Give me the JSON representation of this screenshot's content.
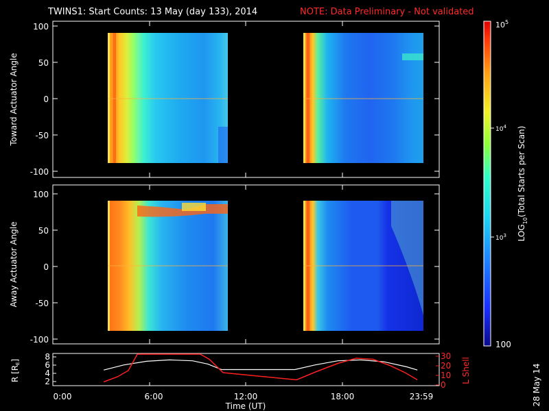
{
  "title_main": "TWINS1: Start Counts: 13 May (day 133), 2014",
  "title_note": "NOTE: Data Preliminary - Not validated",
  "chart_data": [
    {
      "type": "heatmap",
      "ylabel": "Toward Actuator Angle",
      "ylim": [
        -110,
        110
      ],
      "yticks": [
        100,
        50,
        0,
        -50,
        -100
      ],
      "xlim_hours": [
        0,
        24
      ],
      "data_blocks_hours": [
        [
          2.8,
          10.4
        ],
        [
          14.5,
          22.0
        ]
      ],
      "data_angle_range": [
        -88,
        89
      ]
    },
    {
      "type": "heatmap",
      "ylabel": "Away Actuator Angle",
      "ylim": [
        -110,
        110
      ],
      "yticks": [
        100,
        50,
        0,
        -50,
        -100
      ],
      "xlim_hours": [
        0,
        24
      ],
      "data_blocks_hours": [
        [
          2.8,
          10.4
        ],
        [
          14.5,
          22.0
        ]
      ],
      "data_angle_range": [
        -88,
        89
      ]
    },
    {
      "type": "line",
      "xlabel": "Time (UT)",
      "xticks": [
        "0:00",
        "6:00",
        "12:00",
        "18:00",
        "23:59"
      ],
      "x_hours": [
        0,
        6,
        12,
        18,
        23.98
      ],
      "ylabel_left_main": "R [R",
      "ylabel_left_sub": "E",
      "ylabel_left_end": "]",
      "yticks_left": [
        8,
        6,
        4,
        2
      ],
      "ylim_left": [
        1.5,
        8.5
      ],
      "ylabel_right": "L Shell",
      "yticks_right": [
        30,
        20,
        10,
        0
      ],
      "ylim_right": [
        0,
        30
      ],
      "series": [
        {
          "name": "R [RE]",
          "color": "#ffffff",
          "x": [
            2.7,
            4.0,
            5.5,
            7.0,
            8.5,
            9.5,
            10.4,
            12.0,
            14.0,
            15.2,
            16.5,
            18.0,
            19.5,
            21.0,
            22.5,
            23.2
          ],
          "y": [
            4.9,
            6.0,
            6.8,
            7.1,
            6.9,
            6.2,
            5.0,
            5.0,
            5.0,
            5.0,
            6.0,
            6.9,
            7.1,
            6.7,
            5.6,
            4.9
          ]
        },
        {
          "name": "L Shell",
          "color": "#ff2020",
          "x": [
            2.7,
            3.6,
            4.3,
            4.9,
            9.0,
            9.6,
            10.5,
            15.3,
            16.6,
            18.0,
            19.2,
            20.3,
            21.4,
            22.4,
            23.2
          ],
          "y": [
            3,
            8,
            14,
            31,
            31,
            25,
            12,
            5,
            13,
            21,
            26,
            25,
            19,
            12,
            5
          ]
        }
      ]
    }
  ],
  "colorbar": {
    "label_main": "LOG",
    "label_sub": "10",
    "label_end": "(Total Starts per Scan)",
    "ticks": [
      "10",
      "10",
      "10",
      "100"
    ],
    "tick_exps": [
      "5",
      "4",
      "3",
      ""
    ],
    "tick_values": [
      100000,
      10000,
      1000,
      100
    ]
  },
  "date_stamp": "28 May 14",
  "colors": {
    "background": "#000000",
    "note_text": "#ff2a2a",
    "white_trace": "#ffffff",
    "lshell_trace": "#ff2020"
  }
}
